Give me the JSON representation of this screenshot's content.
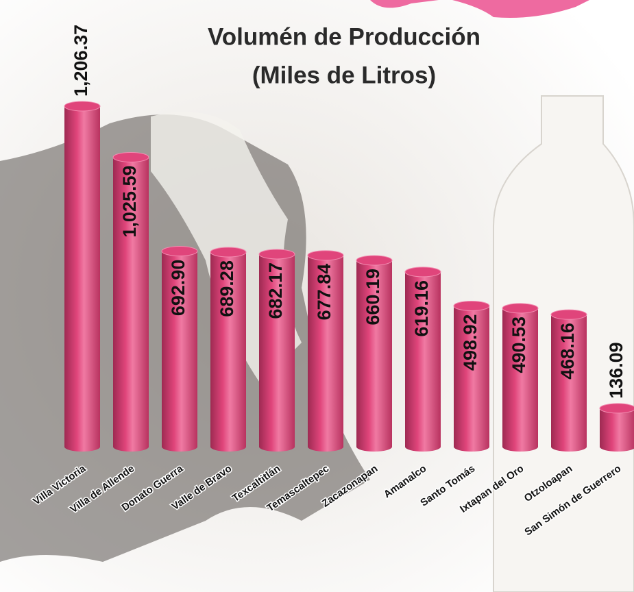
{
  "chart_data": {
    "type": "bar",
    "title": "Volumén de Producción",
    "subtitle": "(Miles de Litros)",
    "categories": [
      "Villa Victoria",
      "Villa de Allende",
      "Donato Guerra",
      "Valle de Bravo",
      "Texcaltitlán",
      "Temascaltepec",
      "Zacazonapan",
      "Amanalco",
      "Santo Tomás",
      "Ixtapan del Oro",
      "Otzoloapan",
      "San Simón de Guerrero"
    ],
    "values": [
      1206.37,
      1025.59,
      692.9,
      689.28,
      682.17,
      677.84,
      660.19,
      619.16,
      498.92,
      490.53,
      468.16,
      136.09
    ],
    "value_labels": [
      "1,206.37",
      "1,025.59",
      "692.90",
      "689.28",
      "682.17",
      "677.84",
      "660.19",
      "619.16",
      "498.92",
      "490.53",
      "468.16",
      "136.09"
    ],
    "color": "#e0457b"
  }
}
